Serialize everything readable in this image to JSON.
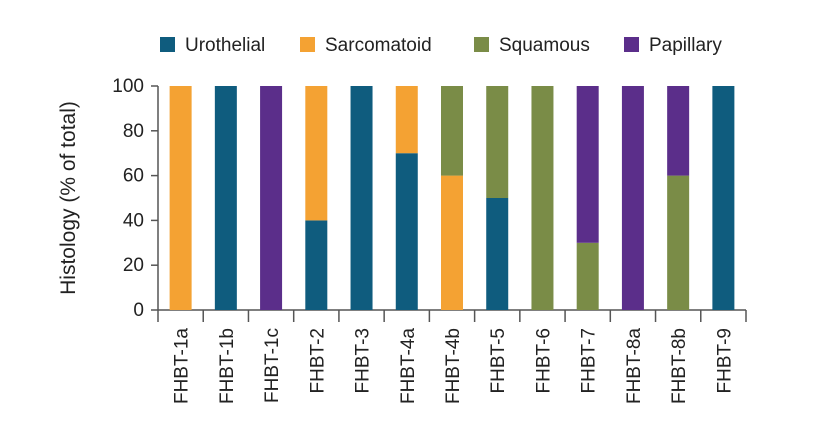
{
  "chart_data": {
    "type": "bar",
    "stacked": true,
    "ylabel": "Histology (% of total)",
    "xlabel": "",
    "ylim": [
      0,
      100
    ],
    "yticks": [
      0,
      20,
      40,
      60,
      80,
      100
    ],
    "legend_position": "top",
    "grid": false,
    "categories": [
      "FHBT-1a",
      "FHBT-1b",
      "FHBT-1c",
      "FHBT-2",
      "FHBT-3",
      "FHBT-4a",
      "FHBT-4b",
      "FHBT-5",
      "FHBT-6",
      "FHBT-7",
      "FHBT-8a",
      "FHBT-8b",
      "FHBT-9"
    ],
    "series": [
      {
        "name": "Urothelial",
        "color": "#0f5c7e",
        "values": [
          0,
          100,
          0,
          40,
          100,
          70,
          0,
          50,
          0,
          0,
          0,
          0,
          100
        ]
      },
      {
        "name": "Sarcomatoid",
        "color": "#f4a233",
        "values": [
          100,
          0,
          0,
          60,
          0,
          30,
          60,
          0,
          0,
          0,
          0,
          0,
          0
        ]
      },
      {
        "name": "Squamous",
        "color": "#7a8c47",
        "values": [
          0,
          0,
          0,
          0,
          0,
          0,
          40,
          50,
          100,
          30,
          0,
          60,
          0
        ]
      },
      {
        "name": "Papillary",
        "color": "#5b2e8a",
        "values": [
          0,
          0,
          100,
          0,
          0,
          0,
          0,
          0,
          0,
          70,
          100,
          40,
          0
        ]
      }
    ]
  }
}
